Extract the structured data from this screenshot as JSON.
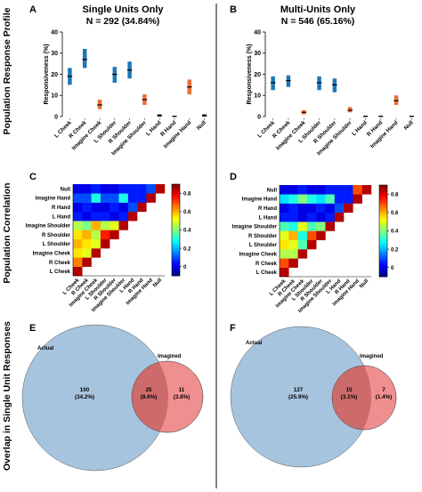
{
  "row_labels": [
    "Population Response Profile",
    "Population Correlation",
    "Overlap in Single Unit Responses"
  ],
  "panels": {
    "A": {
      "letter": "A",
      "title": "Single Units Only",
      "subtitle": "N = 292 (34.84%)"
    },
    "B": {
      "letter": "B",
      "title": "Multi-Units Only",
      "subtitle": "N = 546 (65.16%)"
    },
    "C": {
      "letter": "C"
    },
    "D": {
      "letter": "D"
    },
    "E": {
      "letter": "E"
    },
    "F": {
      "letter": "F"
    }
  },
  "colors": {
    "actual_bar": "#1f77b4",
    "imagined_bar": "#e8703a",
    "black_bar": "#000000",
    "circle_actual": "#a7c4de",
    "circle_imagined": "#f08f8f",
    "circle_overlap": "#cd6b6b"
  },
  "chart_data": [
    {
      "id": "A",
      "type": "scatter",
      "ylabel": "Responsiveness (%)",
      "ylim": [
        0,
        40
      ],
      "yticks": [
        0,
        10,
        20,
        30,
        40
      ],
      "categories": [
        "L Cheek",
        "R Cheek",
        "Imagine Cheek",
        "L Shoulder",
        "R Shoulder",
        "Imagine Shoulder",
        "L Hand",
        "R Hand",
        "Imagine Hand",
        "Null"
      ],
      "category_kind": [
        "actual",
        "actual",
        "imagined",
        "actual",
        "actual",
        "imagined",
        "black",
        "black",
        "imagined",
        "black"
      ],
      "values": [
        19,
        27,
        5.5,
        20,
        22,
        8,
        0.5,
        0,
        14,
        0.5
      ],
      "ranges": [
        [
          15,
          23
        ],
        [
          23,
          32
        ],
        [
          3.5,
          8
        ],
        [
          16,
          23.5
        ],
        [
          18,
          26
        ],
        [
          5.5,
          10.5
        ],
        [
          0,
          1
        ],
        [
          0,
          0.4
        ],
        [
          10.5,
          17.5
        ],
        [
          0,
          1
        ]
      ]
    },
    {
      "id": "B",
      "type": "scatter",
      "ylabel": "Responsiveness (%)",
      "ylim": [
        0,
        40
      ],
      "yticks": [
        0,
        10,
        20,
        30,
        40
      ],
      "categories": [
        "L Cheek",
        "R Cheek",
        "Imagine Cheek",
        "L Shoulder",
        "R Shoulder",
        "Imagine Shoulder",
        "L Hand",
        "R Hand",
        "Imagine Hand",
        "Null"
      ],
      "category_kind": [
        "actual",
        "actual",
        "imagined",
        "actual",
        "actual",
        "imagined",
        "black",
        "black",
        "imagined",
        "black"
      ],
      "values": [
        16,
        17,
        2,
        16,
        15,
        3,
        0,
        0,
        7.5,
        0
      ],
      "ranges": [
        [
          12.5,
          19
        ],
        [
          14,
          19.5
        ],
        [
          1,
          3
        ],
        [
          12.5,
          19
        ],
        [
          11.5,
          18
        ],
        [
          2,
          4.5
        ],
        [
          0,
          0.4
        ],
        [
          0,
          0.4
        ],
        [
          5.5,
          10
        ],
        [
          0,
          0.4
        ]
      ]
    },
    {
      "id": "C",
      "type": "heatmap",
      "labels": [
        "L Cheek",
        "R Cheek",
        "Imagine Cheek",
        "L Shoulder",
        "R Shoulder",
        "Imagine Shoulder",
        "L Hand",
        "R Hand",
        "Imagine Hand",
        "Null"
      ],
      "colorbar_ticks": [
        0,
        0.2,
        0.4,
        0.6,
        0.8
      ],
      "clim": [
        -0.1,
        0.9
      ],
      "lower_triangle": [
        [
          0.85
        ],
        [
          0.65,
          0.85
        ],
        [
          0.55,
          0.5,
          0.85
        ],
        [
          0.6,
          0.55,
          0.5,
          0.85
        ],
        [
          0.55,
          0.6,
          0.45,
          0.75,
          0.85
        ],
        [
          0.45,
          0.4,
          0.6,
          0.45,
          0.5,
          0.85
        ],
        [
          0.05,
          0.0,
          0.05,
          0.05,
          0.0,
          0.05,
          0.85
        ],
        [
          0.0,
          0.05,
          0.0,
          0.0,
          0.05,
          0.0,
          0.1,
          0.85
        ],
        [
          0.1,
          0.1,
          0.3,
          0.1,
          0.1,
          0.3,
          0.05,
          0.05,
          0.85
        ],
        [
          0.0,
          0.0,
          0.05,
          0.0,
          0.0,
          0.05,
          0.05,
          0.05,
          0.1,
          0.85
        ]
      ]
    },
    {
      "id": "D",
      "type": "heatmap",
      "labels": [
        "L Cheek",
        "R Cheek",
        "Imagine Cheek",
        "L Shoulder",
        "R Shoulder",
        "Imagine Shoulder",
        "L Hand",
        "R Hand",
        "Imagine Hand",
        "Null"
      ],
      "colorbar_ticks": [
        0,
        0.2,
        0.4,
        0.6,
        0.8
      ],
      "clim": [
        -0.1,
        0.9
      ],
      "lower_triangle": [
        [
          0.85
        ],
        [
          0.7,
          0.85
        ],
        [
          0.45,
          0.45,
          0.85
        ],
        [
          0.55,
          0.5,
          0.35,
          0.85
        ],
        [
          0.5,
          0.6,
          0.3,
          0.7,
          0.85
        ],
        [
          0.35,
          0.3,
          0.5,
          0.35,
          0.4,
          0.85
        ],
        [
          0.05,
          0.05,
          0.0,
          0.05,
          0.0,
          0.05,
          0.85
        ],
        [
          0.0,
          0.05,
          0.0,
          0.0,
          0.05,
          0.0,
          0.1,
          0.85
        ],
        [
          0.25,
          0.3,
          0.4,
          0.3,
          0.25,
          0.35,
          0.05,
          0.05,
          0.85
        ],
        [
          0.0,
          0.0,
          0.05,
          0.0,
          0.0,
          0.05,
          0.05,
          0.05,
          0.7,
          0.85
        ]
      ]
    },
    {
      "id": "E",
      "type": "venn",
      "sets": [
        {
          "label": "Actual"
        },
        {
          "label": "Imagined"
        }
      ],
      "regions": {
        "actual_only": {
          "count": "100",
          "pct": "(34.2%)"
        },
        "both": {
          "count": "25",
          "pct": "(8.6%)"
        },
        "imagined_only": {
          "count": "11",
          "pct": "(3.8%)"
        }
      }
    },
    {
      "id": "F",
      "type": "venn",
      "sets": [
        {
          "label": "Actual"
        },
        {
          "label": "Imagined"
        }
      ],
      "regions": {
        "actual_only": {
          "count": "127",
          "pct": "(25.9%)"
        },
        "both": {
          "count": "15",
          "pct": "(3.1%)"
        },
        "imagined_only": {
          "count": "7",
          "pct": "(1.4%)"
        }
      }
    }
  ]
}
